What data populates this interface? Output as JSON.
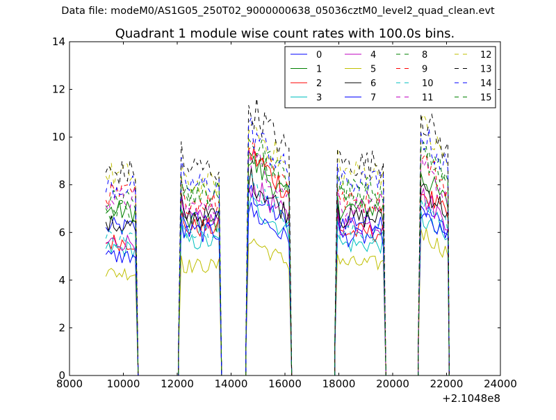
{
  "figure": {
    "suptitle": "Data file: modeM0/AS1G05_250T02_9000000638_05036cztM0_level2_quad_clean.evt"
  },
  "chart_data": {
    "type": "line",
    "title": "Quadrant 1 module wise count rates with 100.0s bins.",
    "xlabel": "",
    "ylabel": "",
    "x_offset_label": "+2.1048e8",
    "xlim": [
      8000,
      24000
    ],
    "ylim": [
      0,
      14
    ],
    "xticks": [
      8000,
      10000,
      12000,
      14000,
      16000,
      18000,
      20000,
      22000,
      24000
    ],
    "yticks": [
      0,
      2,
      4,
      6,
      8,
      10,
      12,
      14
    ],
    "grid": false,
    "legend_position": "top-right",
    "legend_columns": 4,
    "bin_seconds": 100,
    "orbit_segments": [
      {
        "start": 9350,
        "end": 10450,
        "drop_end": 10550,
        "zero_until": 12050
      },
      {
        "start": 12050,
        "end": 13550,
        "drop_end": 13650,
        "zero_until": 14550
      },
      {
        "start": 14550,
        "end": 16150,
        "drop_end": 16250,
        "zero_until": 17850
      },
      {
        "start": 17850,
        "end": 19650,
        "drop_end": 19750,
        "zero_until": 20950
      },
      {
        "start": 20950,
        "end": 22050,
        "drop_end": 22100,
        "zero_until": 22100
      }
    ],
    "series": [
      {
        "name": "0",
        "color": "#0000ff",
        "style": "solid",
        "levels": [
          6.2,
          6.5,
          7.0,
          6.5,
          6.6
        ]
      },
      {
        "name": "1",
        "color": "#008000",
        "style": "solid",
        "levels": [
          6.9,
          6.4,
          8.2,
          7.0,
          7.8
        ]
      },
      {
        "name": "2",
        "color": "#ff0000",
        "style": "solid",
        "levels": [
          5.6,
          6.2,
          8.5,
          6.0,
          7.2
        ]
      },
      {
        "name": "3",
        "color": "#00bfbf",
        "style": "solid",
        "levels": [
          5.3,
          5.6,
          6.6,
          5.5,
          6.1
        ]
      },
      {
        "name": "4",
        "color": "#bf00bf",
        "style": "solid",
        "levels": [
          5.6,
          6.5,
          7.3,
          6.3,
          7.0
        ]
      },
      {
        "name": "5",
        "color": "#bfbf00",
        "style": "solid",
        "levels": [
          4.3,
          4.6,
          5.2,
          4.7,
          5.6
        ]
      },
      {
        "name": "6",
        "color": "#000000",
        "style": "solid",
        "levels": [
          6.3,
          6.7,
          7.5,
          6.6,
          7.4
        ]
      },
      {
        "name": "7",
        "color": "#0000ff",
        "style": "solid",
        "levels": [
          5.0,
          6.0,
          6.3,
          5.8,
          6.2
        ]
      },
      {
        "name": "8",
        "color": "#008000",
        "style": "dashed",
        "levels": [
          7.3,
          7.5,
          9.0,
          7.8,
          8.9
        ]
      },
      {
        "name": "9",
        "color": "#ff0000",
        "style": "dashed",
        "levels": [
          7.6,
          7.3,
          8.9,
          7.3,
          8.5
        ]
      },
      {
        "name": "10",
        "color": "#00bfbf",
        "style": "dashed",
        "levels": [
          5.8,
          6.2,
          7.4,
          6.0,
          6.8
        ]
      },
      {
        "name": "11",
        "color": "#bf00bf",
        "style": "dashed",
        "levels": [
          7.4,
          7.0,
          8.4,
          7.1,
          8.1
        ]
      },
      {
        "name": "12",
        "color": "#bfbf00",
        "style": "dashed",
        "levels": [
          8.4,
          8.0,
          9.6,
          8.5,
          9.7
        ]
      },
      {
        "name": "13",
        "color": "#000000",
        "style": "dashed",
        "levels": [
          8.5,
          8.7,
          10.3,
          8.9,
          10.1
        ]
      },
      {
        "name": "14",
        "color": "#0000ff",
        "style": "dashed",
        "levels": [
          7.9,
          8.0,
          9.4,
          8.1,
          9.4
        ]
      },
      {
        "name": "15",
        "color": "#008000",
        "style": "dashed",
        "levels": [
          6.9,
          7.7,
          8.7,
          7.5,
          8.6
        ]
      }
    ]
  }
}
